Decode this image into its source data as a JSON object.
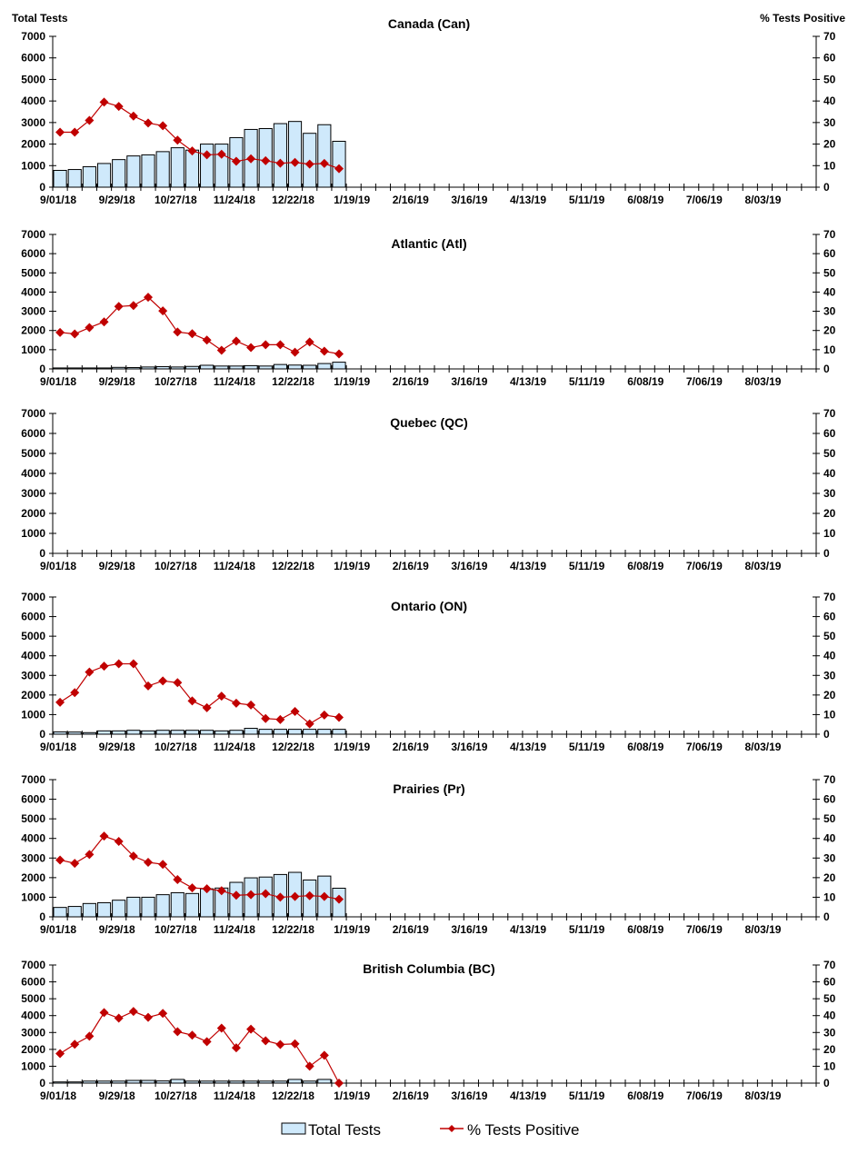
{
  "chart_data": [
    {
      "type": "bar+line",
      "title": "Canada (Can)",
      "ylabel_left": "Total Tests",
      "ylabel_right": "% Tests Positive",
      "ylim_left": [
        0,
        7000
      ],
      "ylim_right": [
        0,
        70
      ],
      "yticks_left": [
        "0",
        "1000",
        "2000",
        "3000",
        "4000",
        "5000",
        "6000",
        "7000"
      ],
      "yticks_right": [
        "0",
        "10",
        "20",
        "30",
        "40",
        "50",
        "60",
        "70"
      ],
      "total_tests": [
        780,
        820,
        950,
        1100,
        1280,
        1450,
        1500,
        1650,
        1830,
        1720,
        2000,
        2000,
        2300,
        2680,
        2720,
        2950,
        3050,
        2500,
        2900,
        2130
      ],
      "pct_positive": [
        25.5,
        25.5,
        31,
        39.5,
        37.5,
        33,
        29.8,
        28.5,
        21.8,
        16.8,
        15,
        15.3,
        12,
        13.2,
        12.3,
        11.1,
        11.5,
        10.7,
        11,
        8.6
      ]
    },
    {
      "type": "bar+line",
      "title": "Atlantic (Atl)",
      "ylim_left": [
        0,
        7000
      ],
      "ylim_right": [
        0,
        70
      ],
      "yticks_left": [
        "0",
        "1000",
        "2000",
        "3000",
        "4000",
        "5000",
        "6000",
        "7000"
      ],
      "yticks_right": [
        "0",
        "10",
        "20",
        "30",
        "40",
        "50",
        "60",
        "70"
      ],
      "total_tests": [
        50,
        50,
        50,
        50,
        80,
        70,
        100,
        120,
        100,
        130,
        190,
        150,
        150,
        170,
        150,
        230,
        200,
        190,
        280,
        350
      ],
      "pct_positive": [
        19,
        18.2,
        21.5,
        24.5,
        32.5,
        33,
        37.3,
        30.2,
        19.2,
        18.3,
        15,
        9.7,
        14.5,
        11.1,
        12.6,
        12.6,
        8.7,
        14,
        9.2,
        7.8
      ]
    },
    {
      "type": "bar+line",
      "title": "Quebec (QC)",
      "ylim_left": [
        0,
        7000
      ],
      "ylim_right": [
        0,
        70
      ],
      "yticks_left": [
        "0",
        "1000",
        "2000",
        "3000",
        "4000",
        "5000",
        "6000",
        "7000"
      ],
      "yticks_right": [
        "0",
        "10",
        "20",
        "30",
        "40",
        "50",
        "60",
        "70"
      ],
      "total_tests": [],
      "pct_positive": []
    },
    {
      "type": "bar+line",
      "title": "Ontario (ON)",
      "ylim_left": [
        0,
        7000
      ],
      "ylim_right": [
        0,
        70
      ],
      "yticks_left": [
        "0",
        "1000",
        "2000",
        "3000",
        "4000",
        "5000",
        "6000",
        "7000"
      ],
      "yticks_right": [
        "0",
        "10",
        "20",
        "30",
        "40",
        "50",
        "60",
        "70"
      ],
      "total_tests": [
        120,
        110,
        80,
        170,
        170,
        200,
        170,
        200,
        200,
        200,
        200,
        170,
        200,
        300,
        250,
        250,
        250,
        250,
        250,
        250
      ],
      "pct_positive": [
        16.3,
        21.2,
        31.7,
        34.7,
        35.9,
        35.9,
        24.6,
        27.2,
        26.3,
        17,
        13.5,
        19.4,
        15.8,
        14.9,
        8,
        7.5,
        11.6,
        5.3,
        9.8,
        8.6
      ]
    },
    {
      "type": "bar+line",
      "title": "Prairies (Pr)",
      "ylim_left": [
        0,
        7000
      ],
      "ylim_right": [
        0,
        70
      ],
      "yticks_left": [
        "0",
        "1000",
        "2000",
        "3000",
        "4000",
        "5000",
        "6000",
        "7000"
      ],
      "yticks_right": [
        "0",
        "10",
        "20",
        "30",
        "40",
        "50",
        "60",
        "70"
      ],
      "total_tests": [
        480,
        530,
        680,
        720,
        850,
        1000,
        1000,
        1130,
        1230,
        1190,
        1430,
        1470,
        1760,
        1990,
        2030,
        2160,
        2270,
        1880,
        2080,
        1460
      ],
      "pct_positive": [
        29,
        27.3,
        31.8,
        41.2,
        38.5,
        31,
        27.8,
        26.8,
        19,
        14.8,
        14.3,
        13.3,
        11,
        11.3,
        11.8,
        10,
        10.4,
        10.8,
        10.4,
        9
      ]
    },
    {
      "type": "bar+line",
      "title": "British Columbia (BC)",
      "ylim_left": [
        0,
        7000
      ],
      "ylim_right": [
        0,
        70
      ],
      "yticks_left": [
        "0",
        "1000",
        "2000",
        "3000",
        "4000",
        "5000",
        "6000",
        "7000"
      ],
      "yticks_right": [
        "0",
        "10",
        "20",
        "30",
        "40",
        "50",
        "60",
        "70"
      ],
      "total_tests": [
        70,
        70,
        120,
        120,
        120,
        160,
        160,
        130,
        220,
        120,
        120,
        120,
        120,
        120,
        120,
        120,
        220,
        120,
        220,
        0
      ],
      "pct_positive": [
        17.5,
        23,
        27.8,
        41.8,
        38.5,
        42.5,
        39,
        41.3,
        30.5,
        28.4,
        24.6,
        32.6,
        20.9,
        32,
        25.1,
        22.9,
        23.3,
        10,
        16.5,
        0
      ]
    }
  ],
  "x_axis": {
    "weeks": 52,
    "tick_labels": [
      "9/01/18",
      "9/29/18",
      "10/27/18",
      "11/24/18",
      "12/22/18",
      "1/19/19",
      "2/16/19",
      "3/16/19",
      "4/13/19",
      "5/11/19",
      "6/08/19",
      "7/06/19",
      "8/03/19"
    ]
  },
  "legend": {
    "position": "bottom",
    "bar_label": "Total Tests",
    "line_label": "% Tests Positive"
  },
  "colors": {
    "bar_fill": "#cfe9fb",
    "bar_stroke": "#000000",
    "line": "#c00000"
  }
}
